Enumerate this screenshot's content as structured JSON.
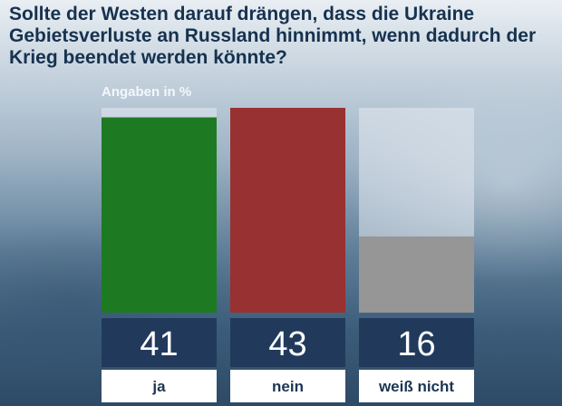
{
  "question": "Sollte der Westen darauf drängen, dass die Ukraine Gebietsverluste an Russland hinnimmt, wenn dadurch der Krieg beendet werden könnte?",
  "unit_label": "Angaben in %",
  "colors": {
    "ja": "#1e7a22",
    "nein": "#983131",
    "weiss_nicht": "#969696",
    "value_band": "#213a5c",
    "label_band": "#ffffff",
    "track": "#e4eaf0"
  },
  "chart_data": {
    "type": "bar",
    "title": "Sollte der Westen darauf drängen, dass die Ukraine Gebietsverluste an Russland hinnimmt, wenn dadurch der Krieg beendet werden könnte?",
    "ylabel": "Angaben in %",
    "xlabel": "",
    "categories": [
      "ja",
      "nein",
      "weiß nicht"
    ],
    "values": [
      41,
      43,
      16
    ],
    "ylim": [
      0,
      43
    ],
    "value_labels": [
      "41",
      "43",
      "16"
    ]
  }
}
